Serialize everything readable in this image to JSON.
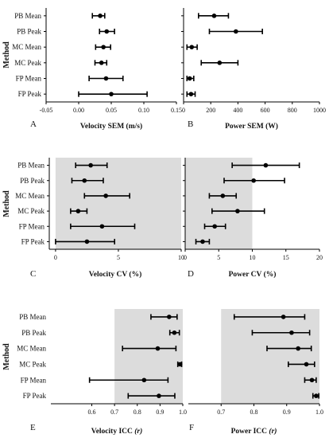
{
  "figure": {
    "method_label": "Method",
    "methods": [
      "PB Mean",
      "PB Peak",
      "MC Mean",
      "MC Peak",
      "FP Mean",
      "FP Peak"
    ]
  },
  "chart_data": [
    {
      "id": "A",
      "panel_label": "A",
      "type": "errorbar",
      "xlabel": "Velocity SEM (m/s)",
      "xlim": [
        -0.05,
        0.15
      ],
      "xticks": [
        -0.05,
        0.0,
        0.05,
        0.1,
        0.15
      ],
      "xtick_labels": [
        "-0.05",
        "0.00",
        "0.05",
        "0.10",
        "0.15"
      ],
      "shaded": null,
      "series": [
        {
          "method": "PB Mean",
          "mean": 0.033,
          "low": 0.021,
          "high": 0.04
        },
        {
          "method": "PB Peak",
          "mean": 0.043,
          "low": 0.032,
          "high": 0.055
        },
        {
          "method": "MC Mean",
          "mean": 0.038,
          "low": 0.026,
          "high": 0.049
        },
        {
          "method": "MC Peak",
          "mean": 0.035,
          "low": 0.025,
          "high": 0.043
        },
        {
          "method": "FP Mean",
          "mean": 0.042,
          "low": 0.016,
          "high": 0.068
        },
        {
          "method": "FP Peak",
          "mean": 0.05,
          "low": 0.0,
          "high": 0.105
        }
      ]
    },
    {
      "id": "B",
      "panel_label": "B",
      "type": "errorbar",
      "xlabel": "Power SEM (W)",
      "xlim": [
        0,
        1000
      ],
      "xticks": [
        0,
        200,
        400,
        600,
        800,
        1000
      ],
      "xtick_labels": [
        "0",
        "200",
        "400",
        "600",
        "800",
        "1000"
      ],
      "shaded": null,
      "series": [
        {
          "method": "PB Mean",
          "mean": 225,
          "low": 110,
          "high": 330
        },
        {
          "method": "PB Peak",
          "mean": 385,
          "low": 190,
          "high": 580
        },
        {
          "method": "MC Mean",
          "mean": 60,
          "low": 25,
          "high": 100
        },
        {
          "method": "MC Peak",
          "mean": 265,
          "low": 130,
          "high": 400
        },
        {
          "method": "FP Mean",
          "mean": 45,
          "low": 25,
          "high": 75
        },
        {
          "method": "FP Peak",
          "mean": 55,
          "low": 25,
          "high": 85
        }
      ]
    },
    {
      "id": "C",
      "panel_label": "C",
      "type": "errorbar",
      "xlabel": "Velocity CV (%)",
      "xlim": [
        -0.5,
        10
      ],
      "xticks": [
        0,
        5,
        10
      ],
      "xtick_labels": [
        "0",
        "5",
        "10"
      ],
      "shaded": [
        0,
        10
      ],
      "series": [
        {
          "method": "PB Mean",
          "mean": 2.8,
          "low": 1.6,
          "high": 4.1
        },
        {
          "method": "PB Peak",
          "mean": 2.3,
          "low": 1.3,
          "high": 3.8
        },
        {
          "method": "MC Mean",
          "mean": 4.0,
          "low": 2.3,
          "high": 5.9
        },
        {
          "method": "MC Peak",
          "mean": 1.8,
          "low": 1.2,
          "high": 2.5
        },
        {
          "method": "FP Mean",
          "mean": 3.7,
          "low": 1.2,
          "high": 6.3
        },
        {
          "method": "FP Peak",
          "mean": 2.5,
          "low": 0.0,
          "high": 4.7
        }
      ]
    },
    {
      "id": "D",
      "panel_label": "D",
      "type": "errorbar",
      "xlabel": "Power CV (%)",
      "xlim": [
        0,
        20
      ],
      "xticks": [
        0,
        5,
        10,
        15,
        20
      ],
      "xtick_labels": [
        "0",
        "5",
        "10",
        "15",
        "20"
      ],
      "shaded": [
        0,
        10
      ],
      "series": [
        {
          "method": "PB Mean",
          "mean": 12.0,
          "low": 7.0,
          "high": 17.0
        },
        {
          "method": "PB Peak",
          "mean": 10.2,
          "low": 5.8,
          "high": 14.8
        },
        {
          "method": "MC Mean",
          "mean": 5.6,
          "low": 3.6,
          "high": 7.6
        },
        {
          "method": "MC Peak",
          "mean": 7.8,
          "low": 4.0,
          "high": 11.8
        },
        {
          "method": "FP Mean",
          "mean": 4.4,
          "low": 2.9,
          "high": 6.0
        },
        {
          "method": "FP Peak",
          "mean": 2.6,
          "low": 1.6,
          "high": 3.6
        }
      ]
    },
    {
      "id": "E",
      "panel_label": "E",
      "type": "errorbar",
      "xlabel": "Velocity ICC",
      "xlabel_italic": "(r)",
      "xlim": [
        0.42,
        1.0
      ],
      "xticks": [
        0.6,
        0.7,
        0.8,
        0.9,
        1.0
      ],
      "xtick_labels": [
        "0.6",
        "0.7",
        "0.8",
        "0.9",
        "1.0"
      ],
      "shaded": [
        0.7,
        1.0
      ],
      "series": [
        {
          "method": "PB Mean",
          "mean": 0.94,
          "low": 0.86,
          "high": 0.975
        },
        {
          "method": "PB Peak",
          "mean": 0.963,
          "low": 0.943,
          "high": 0.985
        },
        {
          "method": "MC Mean",
          "mean": 0.89,
          "low": 0.735,
          "high": 0.97
        },
        {
          "method": "MC Peak",
          "mean": 0.988,
          "low": 0.978,
          "high": 0.995
        },
        {
          "method": "FP Mean",
          "mean": 0.83,
          "low": 0.59,
          "high": 0.935
        },
        {
          "method": "FP Peak",
          "mean": 0.895,
          "low": 0.76,
          "high": 0.965
        }
      ]
    },
    {
      "id": "F",
      "panel_label": "F",
      "type": "errorbar",
      "xlabel": "Power ICC",
      "xlabel_italic": "(r)",
      "xlim": [
        0.6,
        1.0
      ],
      "xticks": [
        0.7,
        0.8,
        0.9,
        1.0
      ],
      "xtick_labels": [
        "0.7",
        "0.8",
        "0.9",
        "1.0"
      ],
      "shaded": [
        0.7,
        1.0
      ],
      "series": [
        {
          "method": "PB Mean",
          "mean": 0.89,
          "low": 0.74,
          "high": 0.955
        },
        {
          "method": "PB Peak",
          "mean": 0.915,
          "low": 0.795,
          "high": 0.97
        },
        {
          "method": "MC Mean",
          "mean": 0.935,
          "low": 0.84,
          "high": 0.975
        },
        {
          "method": "MC Peak",
          "mean": 0.96,
          "low": 0.905,
          "high": 0.985
        },
        {
          "method": "FP Mean",
          "mean": 0.977,
          "low": 0.955,
          "high": 0.99
        },
        {
          "method": "FP Peak",
          "mean": 0.99,
          "low": 0.98,
          "high": 0.998
        }
      ]
    }
  ]
}
